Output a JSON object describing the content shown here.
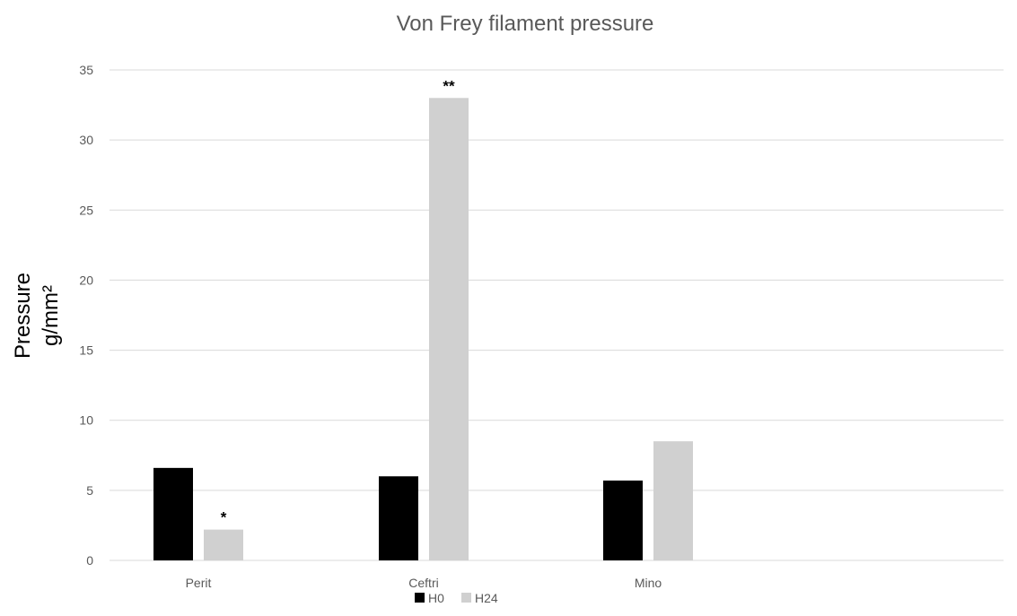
{
  "chart_data": {
    "type": "bar",
    "title": "Von Frey filament pressure",
    "ylabel_lines": [
      "Pressure",
      "g/mm²"
    ],
    "xlabel": "",
    "categories": [
      "Perit",
      "Ceftri",
      "Mino"
    ],
    "series": [
      {
        "name": "H0",
        "color": "#000000",
        "values": [
          6.6,
          6.0,
          5.7
        ]
      },
      {
        "name": "H24",
        "color": "#d0d0d0",
        "values": [
          2.2,
          33.0,
          8.5
        ]
      }
    ],
    "annotations": [
      {
        "category": "Perit",
        "series": "H24",
        "text": "*"
      },
      {
        "category": "Ceftri",
        "series": "H24",
        "text": "**"
      }
    ],
    "ylim": [
      0,
      35
    ],
    "yticks": [
      0,
      5,
      10,
      15,
      20,
      25,
      30,
      35
    ],
    "grid": true,
    "gridline_color": "#d9d9d9",
    "legend_position": "bottom"
  }
}
